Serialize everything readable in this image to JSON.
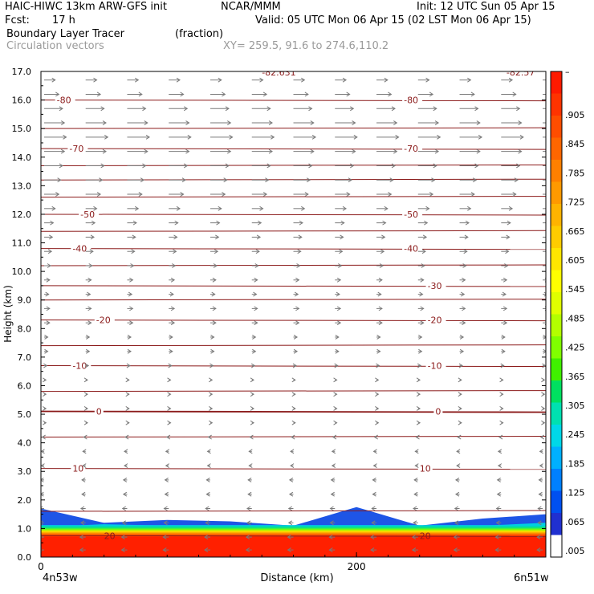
{
  "header": {
    "model": "HAIC-HIWC 13km ARW-GFS init",
    "org": "NCAR/MMM",
    "init": "Init: 12 UTC Sun 05 Apr 15",
    "fcst_label": "Fcst:",
    "fcst_value": "17 h",
    "valid": "Valid: 05 UTC Mon 06 Apr 15 (02 LST Mon 06 Apr 15)",
    "field1": "Boundary Layer Tracer",
    "field1_units": "(fraction)",
    "field2": "Circulation vectors",
    "xy": "XY= 259.5, 91.6 to 274.6,110.2"
  },
  "chart_data": {
    "type": "heatmap",
    "xlabel": "Distance (km)",
    "ylabel": "Height (km)",
    "xlim": [
      0,
      320
    ],
    "ylim": [
      0,
      17
    ],
    "y_ticks": [
      "0.0",
      "1.0",
      "2.0",
      "3.0",
      "4.0",
      "5.0",
      "6.0",
      "7.0",
      "8.0",
      "9.0",
      "10.0",
      "11.0",
      "12.0",
      "13.0",
      "14.0",
      "15.0",
      "16.0",
      "17.0"
    ],
    "x_ticks": [
      {
        "value": 0,
        "label": "0"
      },
      {
        "value": 200,
        "label": "200"
      }
    ],
    "x_end_labels": {
      "left": "4n53w",
      "right": "6n51w"
    },
    "colorbar": {
      "labels": [
        "–",
        ".905",
        ".845",
        ".785",
        ".725",
        ".665",
        ".605",
        ".545",
        ".485",
        ".425",
        ".365",
        ".305",
        ".245",
        ".185",
        ".125",
        ".065",
        ".005"
      ],
      "colors": [
        "#ff1a00",
        "#ff3300",
        "#ff4d00",
        "#ff6600",
        "#ff8000",
        "#ff9900",
        "#ffb300",
        "#ffcc00",
        "#ffe600",
        "#ffff00",
        "#e0ff00",
        "#b3ff00",
        "#80ff00",
        "#40f000",
        "#00e060",
        "#00e0b0",
        "#00d8e8",
        "#00b0ff",
        "#0080ff",
        "#0050f0",
        "#2030d0",
        "#ffffff"
      ]
    },
    "temperature_contours": [
      {
        "height": 16.0,
        "label": "-80",
        "label_x": [
          10,
          230
        ]
      },
      {
        "height": 14.3,
        "label": "-70",
        "label_x": [
          18,
          230
        ]
      },
      {
        "height": 12.0,
        "label": "-50",
        "label_x": [
          25,
          230
        ]
      },
      {
        "height": 10.8,
        "label": "-40",
        "label_x": [
          20,
          230
        ]
      },
      {
        "height": 9.5,
        "label": "-30",
        "label_x": [
          245
        ]
      },
      {
        "height": 8.3,
        "label": "-20",
        "label_x": [
          35,
          245
        ]
      },
      {
        "height": 6.7,
        "label": "-10",
        "label_x": [
          20,
          245
        ]
      },
      {
        "height": 5.1,
        "label": "0",
        "label_x": [
          35,
          250
        ]
      },
      {
        "height": 3.1,
        "label": "10",
        "label_x": [
          20,
          240
        ]
      },
      {
        "height": 0.75,
        "label": "20",
        "label_x": [
          40,
          240
        ]
      }
    ],
    "unlabeled_contour_heights": [
      15.0,
      13.7,
      13.2,
      12.6,
      11.4,
      10.2,
      9.0,
      7.4,
      5.8,
      4.2,
      1.6
    ],
    "top_labels": [
      {
        "x": 140,
        "text": "-82.631"
      },
      {
        "x": 295,
        "text": "-82.57"
      }
    ],
    "tracer_layers": [
      {
        "fraction": 0.95,
        "top_km": [
          0.72,
          0.72,
          0.72,
          0.72,
          0.72,
          0.72,
          0.72,
          0.72,
          0.72
        ]
      },
      {
        "fraction": 0.5,
        "top_km": [
          0.9,
          0.95,
          0.92,
          0.9,
          0.88,
          0.85,
          0.9,
          0.92,
          0.95
        ]
      },
      {
        "fraction": 0.1,
        "top_km": [
          1.05,
          1.15,
          1.1,
          1.05,
          1.0,
          0.95,
          1.05,
          1.1,
          1.2
        ]
      },
      {
        "fraction": 0.02,
        "top_km": [
          1.7,
          1.2,
          1.3,
          1.25,
          1.1,
          1.75,
          1.1,
          1.35,
          1.5
        ]
      }
    ],
    "wind_levels": [
      {
        "height": 16.7,
        "u": 12
      },
      {
        "height": 16.2,
        "u": 16
      },
      {
        "height": 15.7,
        "u": 20
      },
      {
        "height": 15.2,
        "u": 22
      },
      {
        "height": 14.7,
        "u": 24
      },
      {
        "height": 14.2,
        "u": 22
      },
      {
        "height": 13.7,
        "u": 20
      },
      {
        "height": 13.2,
        "u": 18
      },
      {
        "height": 12.7,
        "u": 16
      },
      {
        "height": 12.2,
        "u": 12
      },
      {
        "height": 11.7,
        "u": 10
      },
      {
        "height": 11.2,
        "u": 9
      },
      {
        "height": 10.7,
        "u": 8
      },
      {
        "height": 10.2,
        "u": 7
      },
      {
        "height": 9.7,
        "u": 6
      },
      {
        "height": 9.2,
        "u": 5
      },
      {
        "height": 8.7,
        "u": 6
      },
      {
        "height": 8.2,
        "u": 6
      },
      {
        "height": 7.7,
        "u": 4
      },
      {
        "height": 7.2,
        "u": 4
      },
      {
        "height": 6.7,
        "u": 3
      },
      {
        "height": 6.2,
        "u": 2
      },
      {
        "height": 5.7,
        "u": 2
      },
      {
        "height": 5.2,
        "u": 2
      },
      {
        "height": 4.7,
        "u": 2
      },
      {
        "height": 4.2,
        "u": -2
      },
      {
        "height": 3.7,
        "u": -3
      },
      {
        "height": 3.2,
        "u": -3
      },
      {
        "height": 2.7,
        "u": -4
      },
      {
        "height": 2.2,
        "u": -4
      },
      {
        "height": 1.7,
        "u": -5
      },
      {
        "height": 1.2,
        "u": -5
      },
      {
        "height": 0.7,
        "u": -6
      },
      {
        "height": 0.25,
        "u": -6
      }
    ]
  }
}
